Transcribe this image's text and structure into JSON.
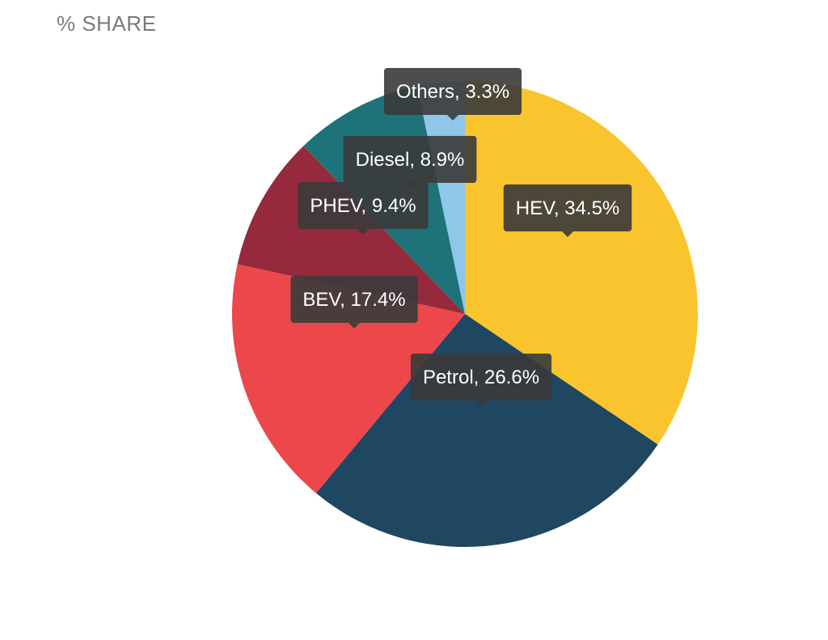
{
  "title": "% SHARE",
  "chart_data": {
    "type": "pie",
    "title": "% SHARE",
    "start_angle_deg": 0,
    "direction": "clockwise",
    "slices": [
      {
        "label": "HEV",
        "value": 34.5,
        "display": "HEV, 34.5%",
        "color": "#F9C42E"
      },
      {
        "label": "Petrol",
        "value": 26.6,
        "display": "Petrol, 26.6%",
        "color": "#1F4761"
      },
      {
        "label": "BEV",
        "value": 17.4,
        "display": "BEV, 17.4%",
        "color": "#EC474B"
      },
      {
        "label": "PHEV",
        "value": 9.4,
        "display": "PHEV, 9.4%",
        "color": "#952A3C"
      },
      {
        "label": "Diesel",
        "value": 8.9,
        "display": "Diesel, 8.9%",
        "color": "#1E7378"
      },
      {
        "label": "Others",
        "value": 3.3,
        "display": "Others, 3.3%",
        "color": "#8EC7EA"
      }
    ],
    "label_style": {
      "background": "#3a3a3a",
      "text_color": "#ffffff"
    }
  }
}
